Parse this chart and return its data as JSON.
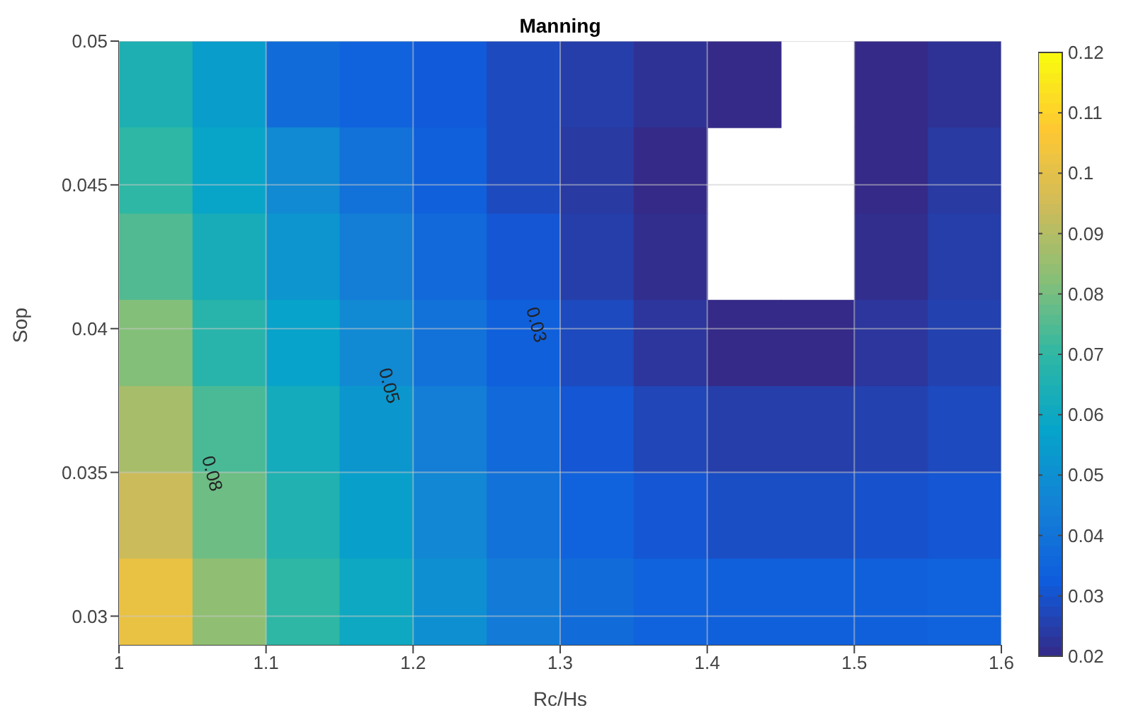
{
  "chart_data": {
    "type": "heatmap",
    "title": "Manning",
    "xlabel": "Rc/Hs",
    "ylabel": "Sop",
    "xlim": [
      1,
      1.6
    ],
    "xticks": [
      1,
      1.1,
      1.2,
      1.3,
      1.4,
      1.5,
      1.6
    ],
    "ylim": [
      0.029,
      0.05
    ],
    "yticks": [
      0.03,
      0.035,
      0.04,
      0.045,
      0.05
    ],
    "clim": [
      0.02,
      0.12
    ],
    "cticks": [
      0.02,
      0.03,
      0.04,
      0.05,
      0.06,
      0.07,
      0.08,
      0.09,
      0.1,
      0.11,
      0.12
    ],
    "grid": true,
    "cells": [
      [
        0.065,
        0.055,
        0.038,
        0.035,
        0.032,
        0.028,
        0.025,
        0.022,
        0.02,
        null,
        0.02,
        0.022
      ],
      [
        0.07,
        0.058,
        0.048,
        0.04,
        0.034,
        0.028,
        0.024,
        0.02,
        null,
        null,
        0.02,
        0.024
      ],
      [
        0.075,
        0.063,
        0.052,
        0.044,
        0.037,
        0.031,
        0.025,
        0.021,
        null,
        null,
        0.021,
        0.025
      ],
      [
        0.082,
        0.068,
        0.057,
        0.048,
        0.04,
        0.034,
        0.028,
        0.023,
        0.02,
        0.02,
        0.023,
        0.026
      ],
      [
        0.088,
        0.074,
        0.062,
        0.053,
        0.044,
        0.037,
        0.031,
        0.027,
        0.025,
        0.025,
        0.026,
        0.028
      ],
      [
        0.094,
        0.079,
        0.066,
        0.056,
        0.047,
        0.04,
        0.035,
        0.031,
        0.029,
        0.029,
        0.03,
        0.031
      ],
      [
        0.102,
        0.084,
        0.07,
        0.06,
        0.05,
        0.043,
        0.038,
        0.035,
        0.034,
        0.034,
        0.034,
        0.035
      ]
    ],
    "annotations": [
      "0.03",
      "0.05",
      "0.08"
    ]
  }
}
